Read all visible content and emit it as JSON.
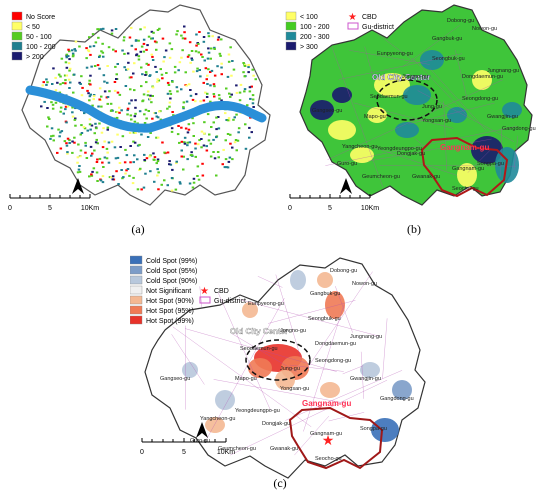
{
  "panels": [
    {
      "id": "a",
      "caption": "(a)",
      "legend": [
        {
          "label": "No Score",
          "color": "#ff0000"
        },
        {
          "label": "< 50",
          "color": "#ffff66"
        },
        {
          "label": "50 - 100",
          "color": "#55cc22"
        },
        {
          "label": "100 - 200",
          "color": "#1f7f8f"
        },
        {
          "label": "> 200",
          "color": "#1a1a6e"
        }
      ],
      "scale": {
        "ticks": [
          "0",
          "5",
          "10Km"
        ]
      },
      "north_label": "N"
    },
    {
      "id": "b",
      "caption": "(b)",
      "legend": [
        {
          "label": "< 100",
          "color": "#ffff66"
        },
        {
          "label": "100 - 200",
          "color": "#44cc22"
        },
        {
          "label": "200 - 300",
          "color": "#1f8a9a"
        },
        {
          "label": "> 300",
          "color": "#1a1a6e"
        }
      ],
      "legend_extra": [
        {
          "label": "CBD",
          "symbol": "star",
          "color": "#ff2222"
        },
        {
          "label": "Gu-district",
          "symbol": "box",
          "color": "#cc55cc"
        }
      ],
      "districts": [
        "Dobong-gu",
        "Gangbuk-gu",
        "Nowon-gu",
        "Eunpyeong-gu",
        "Seongbuk-gu",
        "Jongno-gu",
        "Dongdaemun-gu",
        "Jungnang-gu",
        "Seodaemun-gu",
        "Jung-gu",
        "Seongdong-gu",
        "Gwangjin-gu",
        "Mapo-gu",
        "Yongsan-gu",
        "Gangseo-gu",
        "Gangdong-gu",
        "Yangcheon-gu",
        "Yeongdeungpo-gu",
        "Dongjak-gu",
        "Songpa-gu",
        "Gangnam-gu",
        "Guro-gu",
        "Geumcheon-gu",
        "Gwanak-gu",
        "Seocho-gu"
      ],
      "highlight_labels": [
        "Old City Center",
        "Gangnam-gu"
      ],
      "scale": {
        "ticks": [
          "0",
          "5",
          "10Km"
        ]
      },
      "north_label": "N"
    },
    {
      "id": "c",
      "caption": "(c)",
      "legend": [
        {
          "label": "Cold Spot (99%)",
          "color": "#3a70b8"
        },
        {
          "label": "Cold Spot (95%)",
          "color": "#7c9cc8"
        },
        {
          "label": "Cold Spot (90%)",
          "color": "#b8c8dc"
        },
        {
          "label": "Not Significant",
          "color": "#f0f0f0"
        },
        {
          "label": "Hot Spot (90%)",
          "color": "#f4b892"
        },
        {
          "label": "Hot Spot (95%)",
          "color": "#f07a55"
        },
        {
          "label": "Hot Spot (99%)",
          "color": "#e8322a"
        }
      ],
      "legend_extra": [
        {
          "label": "CBD",
          "symbol": "star",
          "color": "#ff2222"
        },
        {
          "label": "Gu-district",
          "symbol": "box",
          "color": "#cc55cc"
        }
      ],
      "districts": [
        "Dobong-gu",
        "Gangbuk-gu",
        "Nowon-gu",
        "Eunpyeong-gu",
        "Seongbuk-gu",
        "Jongno-gu",
        "Dongdaemun-gu",
        "Jungnang-gu",
        "Seodaemun-gu",
        "Jung-gu",
        "Seongdong-gu",
        "Gwangjin-gu",
        "Mapo-gu",
        "Yongsan-gu",
        "Gangseo-gu",
        "Gangdong-gu",
        "Yangcheon-gu",
        "Yeongdeungpo-gu",
        "Dongjak-gu",
        "Songpa-gu",
        "Gangnam-gu",
        "Guro-gu",
        "Geumcheon-gu",
        "Gwanak-gu",
        "Seocho-gu"
      ],
      "highlight_labels": [
        "Old City Center",
        "Gangnam-gu"
      ],
      "scale": {
        "ticks": [
          "0",
          "5",
          "10Km"
        ]
      },
      "north_label": "N"
    }
  ]
}
